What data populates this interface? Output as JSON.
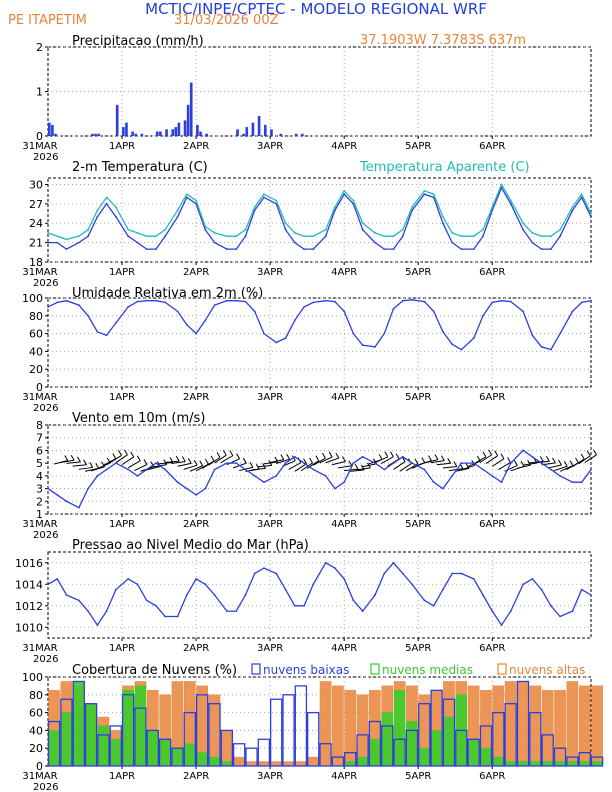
{
  "header": {
    "title": "MCTIC/INPE/CPTEC - MODELO REGIONAL WRF",
    "station": "PE ITAPETIM",
    "run": "31/03/2026 00Z",
    "coords": "37.1903W 7.3783S 637m"
  },
  "colors": {
    "title": "#1f3fd8",
    "orange": "#e8843a",
    "blue": "#2b3fe0",
    "cyan": "#1fbcb4",
    "green": "#3ccc2a",
    "grid": "#999999",
    "axis": "#000000"
  },
  "x_axis": {
    "first_label": "31MAR",
    "first_year": "2026",
    "labels": [
      "1APR",
      "2APR",
      "3APR",
      "4APR",
      "5APR",
      "6APR"
    ]
  },
  "chart_data": [
    {
      "type": "bar",
      "title": "Precipitacao (mm/h)",
      "ylim": [
        0,
        2
      ],
      "yticks": [
        "0",
        "1",
        "2"
      ],
      "x": [
        0,
        1,
        2,
        14,
        15,
        16,
        22,
        24,
        25,
        27,
        28,
        30,
        35,
        36,
        38,
        40,
        41,
        42,
        44,
        45,
        46,
        48,
        49,
        51,
        61,
        63,
        64,
        66,
        68,
        70,
        72,
        75,
        80,
        82
      ],
      "values": [
        0.3,
        0.25,
        0.05,
        0.05,
        0.05,
        0.05,
        0.7,
        0.2,
        0.3,
        0.1,
        0.05,
        0.05,
        0.1,
        0.1,
        0.15,
        0.15,
        0.2,
        0.3,
        0.35,
        0.7,
        1.2,
        0.25,
        0.1,
        0.05,
        0.15,
        0.05,
        0.2,
        0.3,
        0.45,
        0.25,
        0.15,
        0.05,
        0.05,
        0.05
      ]
    },
    {
      "type": "line",
      "title": "2-m Temperatura (C)",
      "legend": "Temperatura Aparente (C)",
      "ylim": [
        18,
        31
      ],
      "yticks": [
        "18",
        "21",
        "24",
        "27",
        "30"
      ],
      "series": [
        {
          "name": "2-m Temperatura (C)",
          "color": "blue",
          "x": [
            0,
            3,
            6,
            10,
            13,
            16,
            19,
            22,
            26,
            29,
            32,
            35,
            38,
            42,
            45,
            48,
            51,
            54,
            58,
            61,
            64,
            67,
            70,
            74,
            77,
            80,
            83,
            86,
            90,
            93,
            96,
            99,
            102,
            106,
            109,
            112,
            115,
            118,
            122,
            125,
            128,
            131,
            134,
            138,
            141,
            144,
            147,
            150,
            154,
            157,
            160,
            163,
            166,
            170,
            173,
            176
          ],
          "values": [
            21,
            21,
            20,
            21,
            22,
            25,
            27,
            25,
            22,
            21,
            20,
            20,
            22,
            25,
            28,
            27,
            23,
            21,
            20,
            20,
            22,
            26,
            28,
            27,
            23,
            21,
            20,
            20,
            22,
            26,
            28.5,
            27,
            23,
            21,
            20,
            20,
            22,
            26,
            28.5,
            28,
            24,
            21,
            20,
            20,
            22,
            26,
            29.5,
            27,
            23,
            21,
            20,
            20,
            22,
            26,
            28,
            25
          ]
        },
        {
          "name": "Temperatura Aparente (C)",
          "color": "cyan",
          "x": [
            0,
            3,
            6,
            10,
            13,
            16,
            19,
            22,
            26,
            29,
            32,
            35,
            38,
            42,
            45,
            48,
            51,
            54,
            58,
            61,
            64,
            67,
            70,
            74,
            77,
            80,
            83,
            86,
            90,
            93,
            96,
            99,
            102,
            106,
            109,
            112,
            115,
            118,
            122,
            125,
            128,
            131,
            134,
            138,
            141,
            144,
            147,
            150,
            154,
            157,
            160,
            163,
            166,
            170,
            173,
            176
          ],
          "values": [
            22.5,
            22,
            21.5,
            22,
            23,
            26,
            28,
            26.5,
            23,
            22.5,
            22,
            22,
            23,
            26,
            28.5,
            27.5,
            23.5,
            22.5,
            22,
            22,
            23,
            26.5,
            28.5,
            27.5,
            24,
            22.5,
            22,
            22,
            23,
            26.5,
            29,
            27.5,
            24,
            22.5,
            22,
            22,
            23,
            26.5,
            29,
            28.5,
            25,
            22.5,
            22,
            22,
            23,
            26.5,
            30,
            27.5,
            24,
            22.5,
            22,
            22,
            23,
            26.5,
            28.5,
            25.5
          ]
        }
      ]
    },
    {
      "type": "line",
      "title": "Umidade Relativa em 2m (%)",
      "ylim": [
        0,
        100
      ],
      "yticks": [
        "0",
        "20",
        "40",
        "60",
        "80",
        "100"
      ],
      "series": [
        {
          "name": "Umidade Relativa em 2m (%)",
          "color": "blue",
          "x": [
            0,
            3,
            6,
            10,
            13,
            16,
            19,
            22,
            26,
            29,
            32,
            35,
            38,
            42,
            45,
            48,
            51,
            54,
            58,
            61,
            64,
            67,
            70,
            74,
            77,
            80,
            83,
            86,
            90,
            93,
            96,
            99,
            102,
            106,
            109,
            112,
            115,
            118,
            122,
            125,
            128,
            131,
            134,
            138,
            141,
            144,
            147,
            150,
            154,
            157,
            160,
            163,
            166,
            170,
            173,
            176
          ],
          "values": [
            90,
            95,
            97,
            92,
            80,
            62,
            58,
            72,
            90,
            96,
            97,
            97,
            95,
            85,
            70,
            60,
            75,
            92,
            97,
            97,
            96,
            85,
            60,
            50,
            55,
            75,
            90,
            95,
            97,
            96,
            85,
            60,
            47,
            45,
            60,
            88,
            97,
            98,
            96,
            85,
            62,
            48,
            42,
            55,
            80,
            95,
            97,
            96,
            85,
            58,
            45,
            42,
            60,
            85,
            95,
            97
          ]
        }
      ]
    },
    {
      "type": "line",
      "title": "Vento em 10m (m/s)",
      "ylim": [
        1,
        8
      ],
      "yticks": [
        "1",
        "2",
        "3",
        "4",
        "5",
        "6",
        "7",
        "8"
      ],
      "series": [
        {
          "name": "Vento em 10m (m/s)",
          "color": "blue",
          "x": [
            0,
            3,
            6,
            10,
            13,
            16,
            19,
            22,
            26,
            29,
            32,
            35,
            38,
            42,
            45,
            48,
            51,
            54,
            58,
            61,
            64,
            67,
            70,
            74,
            77,
            80,
            83,
            86,
            90,
            93,
            96,
            99,
            102,
            106,
            109,
            112,
            115,
            118,
            122,
            125,
            128,
            131,
            134,
            138,
            141,
            144,
            147,
            150,
            154,
            157,
            160,
            163,
            166,
            170,
            173,
            176
          ],
          "values": [
            3,
            2.5,
            2,
            1.5,
            3,
            4,
            4.5,
            5,
            4.5,
            4,
            4.5,
            5,
            4.5,
            3.5,
            3,
            2.5,
            3,
            4.5,
            5,
            5,
            4.5,
            4,
            3.5,
            4,
            5,
            5.5,
            5,
            4.5,
            4,
            3,
            3.5,
            5,
            5.5,
            5,
            4.5,
            5,
            5.5,
            5,
            4.5,
            3.5,
            3,
            4,
            5,
            5,
            4.5,
            4,
            3.5,
            5,
            6,
            5.5,
            5,
            4.5,
            4,
            3.5,
            3.5,
            4.5
          ]
        }
      ]
    },
    {
      "type": "line",
      "title": "Pressao ao Nivel Medio do Mar (hPa)",
      "ylim": [
        1009,
        1017
      ],
      "yticks": [
        "1010",
        "1012",
        "1014",
        "1016"
      ],
      "series": [
        {
          "name": "Pressao ao Nivel Medio do Mar (hPa)",
          "color": "blue",
          "x": [
            0,
            3,
            6,
            10,
            13,
            16,
            19,
            22,
            26,
            29,
            32,
            35,
            38,
            42,
            45,
            48,
            51,
            54,
            58,
            61,
            64,
            67,
            70,
            74,
            77,
            80,
            83,
            86,
            90,
            93,
            96,
            99,
            102,
            106,
            109,
            112,
            115,
            118,
            122,
            125,
            128,
            131,
            134,
            138,
            141,
            144,
            147,
            150,
            154,
            157,
            160,
            163,
            166,
            170,
            173,
            176
          ],
          "values": [
            1014,
            1014.5,
            1013,
            1012.5,
            1011.5,
            1010.2,
            1011.5,
            1013.5,
            1014.5,
            1014,
            1012.5,
            1012,
            1011,
            1011,
            1013,
            1014.5,
            1014,
            1013,
            1011.5,
            1011.5,
            1013,
            1015,
            1015.5,
            1015,
            1013.5,
            1012,
            1012,
            1014,
            1016,
            1015.5,
            1014.5,
            1012.5,
            1011.5,
            1013,
            1015,
            1016,
            1015,
            1014,
            1012.5,
            1012,
            1013.5,
            1015,
            1015,
            1014.5,
            1013,
            1011.5,
            1010.2,
            1011.5,
            1014,
            1014.5,
            1013.5,
            1012,
            1011,
            1011.5,
            1013.5,
            1013
          ]
        }
      ]
    },
    {
      "type": "bar",
      "title": "Cobertura de Nuvens (%)",
      "legend": [
        "nuvens baixas",
        "nuvens medias",
        "nuvens altas"
      ],
      "ylim": [
        0,
        100
      ],
      "yticks": [
        "0",
        "20",
        "40",
        "60",
        "80",
        "100"
      ],
      "series": [
        {
          "name": "nuvens altas",
          "color": "orange",
          "x": [
            0,
            4,
            8,
            12,
            16,
            20,
            24,
            28,
            32,
            36,
            40,
            44,
            48,
            52,
            56,
            60,
            64,
            68,
            72,
            76,
            80,
            84,
            88,
            92,
            96,
            100,
            104,
            108,
            112,
            116,
            120,
            124,
            128,
            132,
            136,
            140,
            144,
            148,
            152,
            156,
            160,
            164,
            168,
            172,
            176
          ],
          "values": [
            85,
            95,
            90,
            70,
            55,
            40,
            90,
            95,
            85,
            80,
            95,
            95,
            90,
            80,
            40,
            10,
            5,
            5,
            5,
            5,
            5,
            10,
            95,
            90,
            85,
            80,
            85,
            90,
            95,
            90,
            80,
            85,
            95,
            95,
            90,
            85,
            90,
            95,
            95,
            90,
            85,
            85,
            95,
            90,
            90
          ]
        },
        {
          "name": "nuvens medias",
          "color": "green",
          "x": [
            0,
            4,
            8,
            12,
            16,
            20,
            24,
            28,
            32,
            36,
            40,
            44,
            48,
            52,
            56,
            60,
            64,
            68,
            72,
            76,
            80,
            84,
            88,
            92,
            96,
            100,
            104,
            108,
            112,
            116,
            120,
            124,
            128,
            132,
            136,
            140,
            144,
            148,
            152,
            156,
            160,
            164,
            168,
            172,
            176
          ],
          "values": [
            40,
            60,
            95,
            70,
            45,
            30,
            85,
            90,
            40,
            30,
            20,
            25,
            15,
            10,
            5,
            0,
            0,
            0,
            0,
            0,
            0,
            0,
            0,
            0,
            5,
            10,
            30,
            60,
            85,
            50,
            20,
            40,
            55,
            80,
            30,
            20,
            10,
            5,
            5,
            5,
            5,
            5,
            5,
            5,
            5
          ]
        },
        {
          "name": "nuvens baixas",
          "color": "blue",
          "x": [
            0,
            4,
            8,
            12,
            16,
            20,
            24,
            28,
            32,
            36,
            40,
            44,
            48,
            52,
            56,
            60,
            64,
            68,
            72,
            76,
            80,
            84,
            88,
            92,
            96,
            100,
            104,
            108,
            112,
            116,
            120,
            124,
            128,
            132,
            136,
            140,
            144,
            148,
            152,
            156,
            160,
            164,
            168,
            172,
            176
          ],
          "values": [
            50,
            75,
            95,
            70,
            35,
            45,
            80,
            65,
            40,
            30,
            20,
            60,
            80,
            70,
            40,
            25,
            20,
            30,
            75,
            80,
            90,
            60,
            25,
            10,
            15,
            35,
            50,
            45,
            30,
            40,
            70,
            85,
            75,
            40,
            30,
            45,
            60,
            70,
            95,
            60,
            35,
            20,
            10,
            15,
            10
          ]
        }
      ]
    }
  ]
}
